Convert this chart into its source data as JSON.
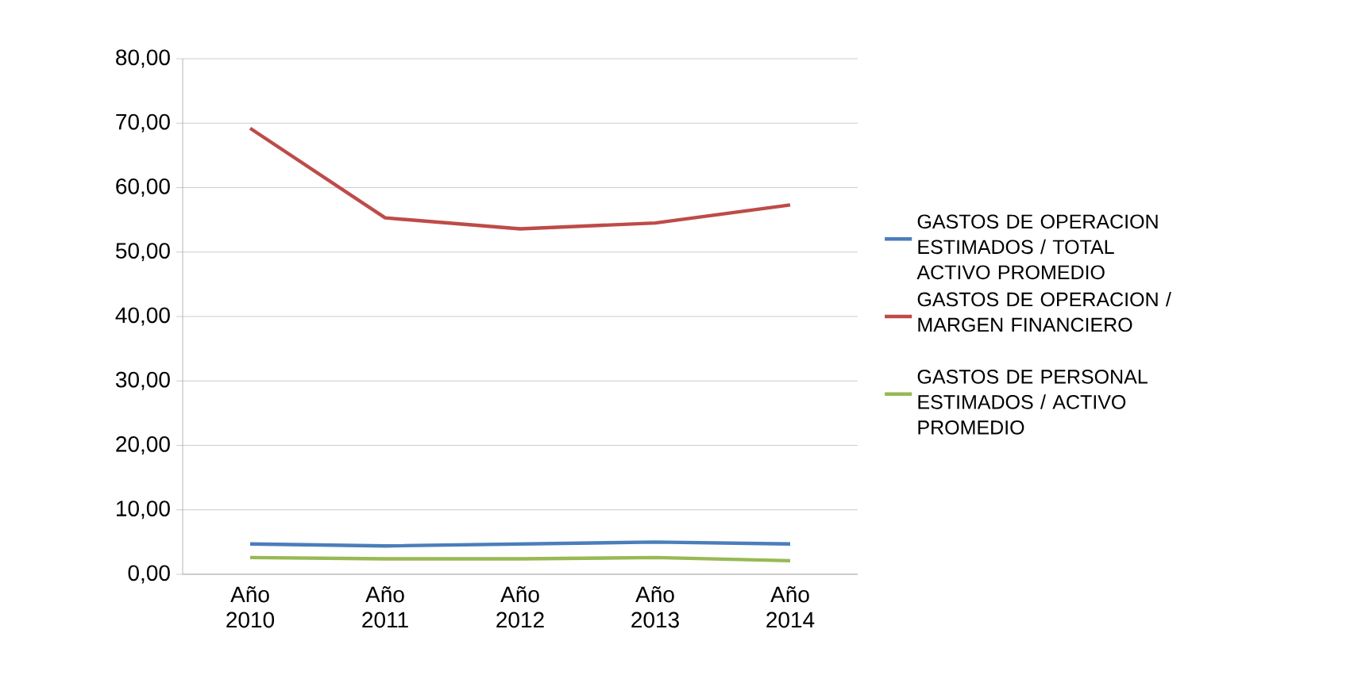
{
  "chart_data": {
    "type": "line",
    "categories": [
      "Año 2010",
      "Año 2011",
      "Año 2012",
      "Año 2013",
      "Año 2014"
    ],
    "series": [
      {
        "name": "GASTOS DE OPERACION ESTIMADOS / TOTAL ACTIVO PROMEDIO",
        "color": "#4a7ebb",
        "values": [
          4.7,
          4.4,
          4.7,
          5.0,
          4.7
        ]
      },
      {
        "name": "GASTOS DE OPERACION / MARGEN FINANCIERO",
        "color": "#be4b48",
        "values": [
          69.2,
          55.3,
          53.6,
          54.5,
          57.3
        ]
      },
      {
        "name": "GASTOS DE PERSONAL ESTIMADOS / ACTIVO PROMEDIO",
        "color": "#98b954",
        "values": [
          2.6,
          2.4,
          2.4,
          2.6,
          2.1
        ]
      }
    ],
    "ylim": [
      0,
      80
    ],
    "yticks": [
      {
        "value": 0,
        "label": "0,00"
      },
      {
        "value": 10,
        "label": "10,00"
      },
      {
        "value": 20,
        "label": "20,00"
      },
      {
        "value": 30,
        "label": "30,00"
      },
      {
        "value": 40,
        "label": "40,00"
      },
      {
        "value": 50,
        "label": "50,00"
      },
      {
        "value": 60,
        "label": "60,00"
      },
      {
        "value": 70,
        "label": "70,00"
      },
      {
        "value": 80,
        "label": "80,00"
      }
    ],
    "grid": "y",
    "legend": "right",
    "marker": "none",
    "line_style": "solid"
  }
}
